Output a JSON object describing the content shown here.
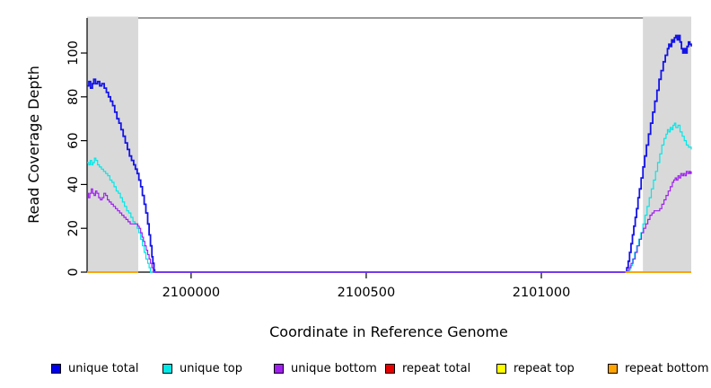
{
  "chart_data": {
    "type": "line",
    "title": "",
    "xlabel": "Coordinate in Reference Genome",
    "ylabel": "Read Coverage Depth",
    "xlim": [
      2099703,
      2101428
    ],
    "ylim": [
      0,
      116
    ],
    "xticks": [
      2100000,
      2100500,
      2101000
    ],
    "yticks": [
      0,
      20,
      40,
      60,
      80,
      100
    ],
    "grid": false,
    "legend_position": "bottom",
    "frame_top_color": "#8C8C8C",
    "axis_color": "#000000",
    "shade_color": "#D9D9D9",
    "shaded_regions": [
      {
        "x0": 2099703,
        "x1": 2099849
      },
      {
        "x0": 2101290,
        "x1": 2101428
      }
    ],
    "series": [
      {
        "name": "unique total",
        "color": "#1414E6",
        "width": 1.8,
        "segments": [
          [
            [
              2099703,
              85
            ],
            [
              2099708,
              87
            ],
            [
              2099713,
              84
            ],
            [
              2099718,
              86
            ],
            [
              2099722,
              88
            ],
            [
              2099727,
              86
            ],
            [
              2099733,
              87
            ],
            [
              2099739,
              85
            ],
            [
              2099745,
              86
            ],
            [
              2099752,
              84
            ],
            [
              2099758,
              82
            ],
            [
              2099764,
              80
            ],
            [
              2099770,
              78
            ],
            [
              2099776,
              76
            ],
            [
              2099782,
              73
            ],
            [
              2099788,
              70
            ],
            [
              2099794,
              68
            ],
            [
              2099800,
              65
            ],
            [
              2099806,
              62
            ],
            [
              2099812,
              59
            ],
            [
              2099818,
              56
            ],
            [
              2099824,
              53
            ],
            [
              2099830,
              51
            ],
            [
              2099836,
              49
            ],
            [
              2099841,
              47
            ],
            [
              2099846,
              45
            ],
            [
              2099851,
              42
            ],
            [
              2099856,
              39
            ],
            [
              2099861,
              35
            ],
            [
              2099866,
              31
            ],
            [
              2099871,
              27
            ],
            [
              2099876,
              22
            ],
            [
              2099880,
              17
            ],
            [
              2099884,
              12
            ],
            [
              2099888,
              7
            ],
            [
              2099891,
              4
            ],
            [
              2099894,
              1
            ],
            [
              2099896,
              0
            ],
            [
              2101240,
              0
            ],
            [
              2101244,
              2
            ],
            [
              2101248,
              5
            ],
            [
              2101252,
              9
            ],
            [
              2101256,
              13
            ],
            [
              2101260,
              17
            ],
            [
              2101264,
              21
            ],
            [
              2101268,
              25
            ],
            [
              2101272,
              29
            ],
            [
              2101276,
              34
            ],
            [
              2101280,
              38
            ],
            [
              2101285,
              43
            ],
            [
              2101290,
              48
            ],
            [
              2101295,
              53
            ],
            [
              2101300,
              58
            ],
            [
              2101306,
              63
            ],
            [
              2101312,
              68
            ],
            [
              2101318,
              73
            ],
            [
              2101324,
              78
            ],
            [
              2101330,
              83
            ],
            [
              2101336,
              88
            ],
            [
              2101342,
              92
            ],
            [
              2101348,
              96
            ],
            [
              2101354,
              99
            ],
            [
              2101360,
              102
            ],
            [
              2101364,
              104
            ],
            [
              2101368,
              103
            ],
            [
              2101372,
              106
            ],
            [
              2101376,
              105
            ],
            [
              2101380,
              107
            ],
            [
              2101384,
              108
            ],
            [
              2101388,
              106
            ],
            [
              2101392,
              108
            ],
            [
              2101396,
              105
            ],
            [
              2101400,
              102
            ],
            [
              2101404,
              100
            ],
            [
              2101408,
              102
            ],
            [
              2101412,
              100
            ],
            [
              2101416,
              103
            ],
            [
              2101420,
              105
            ],
            [
              2101424,
              104
            ],
            [
              2101428,
              103
            ]
          ]
        ]
      },
      {
        "name": "unique top",
        "color": "#00E8E8",
        "width": 1.2,
        "segments": [
          [
            [
              2099703,
              50
            ],
            [
              2099708,
              49
            ],
            [
              2099712,
              51
            ],
            [
              2099716,
              49
            ],
            [
              2099720,
              50
            ],
            [
              2099724,
              52
            ],
            [
              2099728,
              51
            ],
            [
              2099733,
              49
            ],
            [
              2099738,
              48
            ],
            [
              2099744,
              47
            ],
            [
              2099750,
              46
            ],
            [
              2099756,
              45
            ],
            [
              2099762,
              44
            ],
            [
              2099768,
              42
            ],
            [
              2099774,
              41
            ],
            [
              2099780,
              39
            ],
            [
              2099786,
              37
            ],
            [
              2099792,
              36
            ],
            [
              2099798,
              34
            ],
            [
              2099804,
              32
            ],
            [
              2099810,
              30
            ],
            [
              2099816,
              28
            ],
            [
              2099822,
              27
            ],
            [
              2099828,
              25
            ],
            [
              2099834,
              23
            ],
            [
              2099840,
              22
            ],
            [
              2099846,
              20
            ],
            [
              2099851,
              18
            ],
            [
              2099856,
              15
            ],
            [
              2099861,
              12
            ],
            [
              2099866,
              9
            ],
            [
              2099871,
              6
            ],
            [
              2099876,
              4
            ],
            [
              2099880,
              2
            ],
            [
              2099884,
              0
            ],
            [
              2101243,
              0
            ],
            [
              2101248,
              1
            ],
            [
              2101254,
              3
            ],
            [
              2101260,
              6
            ],
            [
              2101266,
              9
            ],
            [
              2101272,
              12
            ],
            [
              2101278,
              15
            ],
            [
              2101284,
              18
            ],
            [
              2101290,
              22
            ],
            [
              2101296,
              26
            ],
            [
              2101302,
              30
            ],
            [
              2101308,
              34
            ],
            [
              2101314,
              38
            ],
            [
              2101320,
              42
            ],
            [
              2101326,
              46
            ],
            [
              2101332,
              50
            ],
            [
              2101338,
              54
            ],
            [
              2101344,
              58
            ],
            [
              2101350,
              61
            ],
            [
              2101356,
              63
            ],
            [
              2101360,
              65
            ],
            [
              2101364,
              64
            ],
            [
              2101368,
              66
            ],
            [
              2101372,
              65
            ],
            [
              2101376,
              67
            ],
            [
              2101380,
              68
            ],
            [
              2101384,
              66
            ],
            [
              2101390,
              67
            ],
            [
              2101396,
              64
            ],
            [
              2101402,
              62
            ],
            [
              2101408,
              60
            ],
            [
              2101414,
              58
            ],
            [
              2101420,
              57
            ],
            [
              2101428,
              56
            ]
          ]
        ]
      },
      {
        "name": "unique bottom",
        "color": "#A020F0",
        "width": 1.2,
        "segments": [
          [
            [
              2099703,
              36
            ],
            [
              2099707,
              34
            ],
            [
              2099711,
              36
            ],
            [
              2099715,
              38
            ],
            [
              2099719,
              36
            ],
            [
              2099723,
              35
            ],
            [
              2099727,
              37
            ],
            [
              2099731,
              36
            ],
            [
              2099736,
              34
            ],
            [
              2099741,
              33
            ],
            [
              2099746,
              34
            ],
            [
              2099751,
              36
            ],
            [
              2099756,
              35
            ],
            [
              2099761,
              33
            ],
            [
              2099766,
              32
            ],
            [
              2099772,
              31
            ],
            [
              2099778,
              30
            ],
            [
              2099784,
              29
            ],
            [
              2099790,
              28
            ],
            [
              2099796,
              27
            ],
            [
              2099802,
              26
            ],
            [
              2099808,
              25
            ],
            [
              2099814,
              24
            ],
            [
              2099820,
              23
            ],
            [
              2099826,
              22
            ],
            [
              2099834,
              22
            ],
            [
              2099842,
              22
            ],
            [
              2099848,
              21
            ],
            [
              2099852,
              20
            ],
            [
              2099856,
              18
            ],
            [
              2099860,
              16
            ],
            [
              2099864,
              14
            ],
            [
              2099868,
              12
            ],
            [
              2099872,
              10
            ],
            [
              2099876,
              8
            ],
            [
              2099880,
              6
            ],
            [
              2099884,
              4
            ],
            [
              2099888,
              2
            ],
            [
              2099892,
              0
            ],
            [
              2101245,
              0
            ],
            [
              2101250,
              2
            ],
            [
              2101256,
              4
            ],
            [
              2101262,
              6
            ],
            [
              2101268,
              9
            ],
            [
              2101274,
              12
            ],
            [
              2101280,
              15
            ],
            [
              2101286,
              18
            ],
            [
              2101292,
              20
            ],
            [
              2101298,
              22
            ],
            [
              2101304,
              24
            ],
            [
              2101310,
              26
            ],
            [
              2101316,
              27
            ],
            [
              2101322,
              28
            ],
            [
              2101330,
              28
            ],
            [
              2101338,
              29
            ],
            [
              2101344,
              31
            ],
            [
              2101350,
              33
            ],
            [
              2101356,
              35
            ],
            [
              2101362,
              37
            ],
            [
              2101368,
              39
            ],
            [
              2101374,
              41
            ],
            [
              2101378,
              42
            ],
            [
              2101382,
              43
            ],
            [
              2101386,
              42
            ],
            [
              2101390,
              44
            ],
            [
              2101394,
              43
            ],
            [
              2101398,
              45
            ],
            [
              2101402,
              44
            ],
            [
              2101406,
              45
            ],
            [
              2101410,
              44
            ],
            [
              2101414,
              46
            ],
            [
              2101418,
              45
            ],
            [
              2101422,
              46
            ],
            [
              2101425,
              45
            ],
            [
              2101428,
              46
            ]
          ]
        ]
      },
      {
        "name": "repeat total",
        "color": "#E60000",
        "width": 1.2,
        "segments": [
          [
            [
              2099703,
              0
            ],
            [
              2099849,
              0
            ]
          ],
          [
            [
              2101240,
              0
            ],
            [
              2101428,
              0
            ]
          ]
        ]
      },
      {
        "name": "repeat top",
        "color": "#FFFF00",
        "width": 1.2,
        "segments": [
          [
            [
              2099703,
              0
            ],
            [
              2099849,
              0
            ]
          ],
          [
            [
              2101240,
              0
            ],
            [
              2101428,
              0
            ]
          ]
        ]
      },
      {
        "name": "repeat bottom",
        "color": "#FFA500",
        "width": 1.7,
        "segments": [
          [
            [
              2099703,
              0
            ],
            [
              2099849,
              0
            ]
          ],
          [
            [
              2101240,
              0
            ],
            [
              2101428,
              0
            ]
          ]
        ]
      }
    ]
  },
  "legend": {
    "items": [
      {
        "label": "unique total",
        "color": "#0000EE"
      },
      {
        "label": "unique top",
        "color": "#00E8E8"
      },
      {
        "label": "unique bottom",
        "color": "#A020F0"
      },
      {
        "label": "repeat total",
        "color": "#E60000"
      },
      {
        "label": "repeat top",
        "color": "#FFFF00"
      },
      {
        "label": "repeat bottom",
        "color": "#FFA500"
      }
    ]
  }
}
